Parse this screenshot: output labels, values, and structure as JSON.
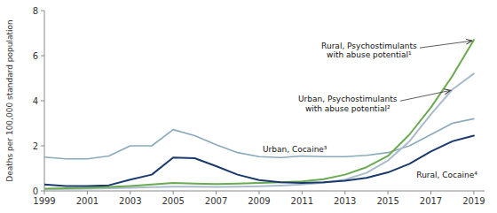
{
  "chart_data": {
    "type": "line",
    "y_label": "Deaths per 100,000 standard population",
    "x": [
      1999,
      2000,
      2001,
      2002,
      2003,
      2004,
      2005,
      2006,
      2007,
      2008,
      2009,
      2010,
      2011,
      2012,
      2013,
      2014,
      2015,
      2016,
      2017,
      2018,
      2019
    ],
    "series": [
      {
        "name": "Urban, Cocaine³",
        "color": "#8aaabb",
        "values": [
          1.5,
          1.42,
          1.42,
          1.55,
          2.0,
          2.0,
          2.72,
          2.45,
          2.05,
          1.7,
          1.52,
          1.48,
          1.55,
          1.52,
          1.52,
          1.58,
          1.7,
          2.0,
          2.5,
          3.0,
          3.2
        ]
      },
      {
        "name": "Urban, Psychostimulants\nwith abuse potential²",
        "color": "#aabccc",
        "values": [
          0.08,
          0.09,
          0.1,
          0.12,
          0.14,
          0.17,
          0.19,
          0.19,
          0.18,
          0.19,
          0.21,
          0.24,
          0.28,
          0.36,
          0.5,
          0.8,
          1.35,
          2.2,
          3.4,
          4.5,
          5.2
        ]
      },
      {
        "name": "Rural, Psychostimulants\nwith abuse potential¹",
        "color": "#6aaa50",
        "values": [
          0.1,
          0.12,
          0.14,
          0.18,
          0.22,
          0.28,
          0.35,
          0.32,
          0.3,
          0.32,
          0.35,
          0.38,
          0.42,
          0.52,
          0.72,
          1.05,
          1.55,
          2.5,
          3.7,
          5.1,
          6.7
        ]
      },
      {
        "name": "Rural, Cocaine⁴",
        "color": "#1a3a6e",
        "values": [
          0.28,
          0.22,
          0.22,
          0.25,
          0.5,
          0.72,
          1.48,
          1.45,
          1.1,
          0.72,
          0.48,
          0.38,
          0.35,
          0.38,
          0.45,
          0.58,
          0.82,
          1.2,
          1.75,
          2.2,
          2.45
        ]
      }
    ],
    "xlim": [
      1999,
      2019.5
    ],
    "xticks": [
      1999,
      2001,
      2003,
      2005,
      2007,
      2009,
      2011,
      2013,
      2015,
      2017,
      2019
    ],
    "ylim": [
      0,
      8
    ],
    "yticks": [
      0,
      2,
      4,
      6,
      8
    ],
    "grid": false
  }
}
